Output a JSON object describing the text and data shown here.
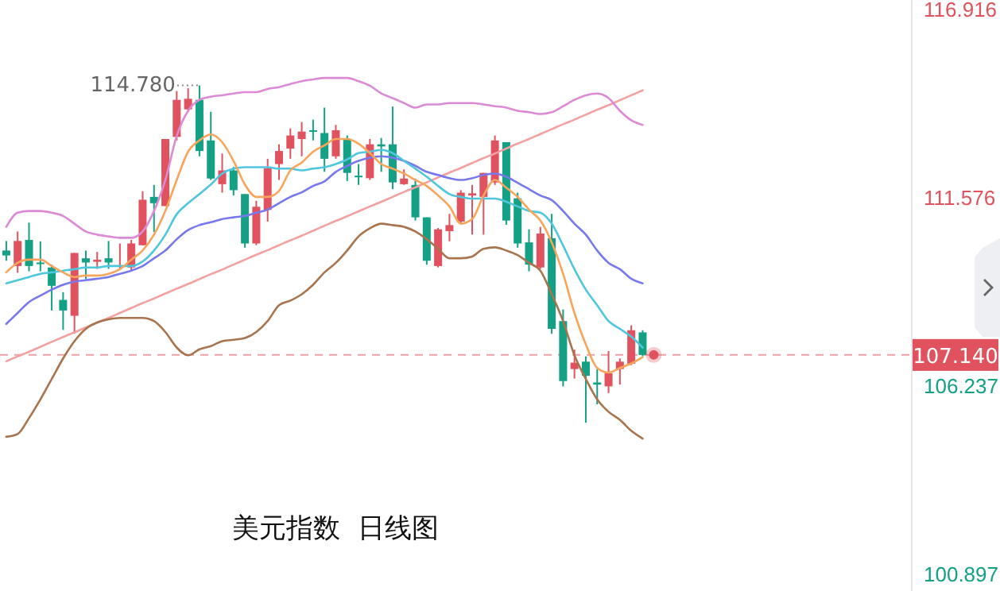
{
  "chart_data": {
    "type": "candlestick",
    "title": "美元指数  日线图",
    "tick_labels": "y",
    "line_style": "solid",
    "categories": [
      null,
      null,
      null,
      null,
      null,
      null,
      null,
      null,
      null,
      null,
      null,
      null,
      null,
      null,
      null,
      null,
      null,
      null,
      null,
      null,
      null,
      null,
      null,
      null,
      null,
      null,
      null,
      null,
      null,
      null,
      null,
      null,
      null,
      null,
      null,
      null,
      null,
      null,
      null,
      null,
      null,
      null,
      null,
      null,
      null,
      null,
      null,
      null,
      null,
      null,
      null,
      null,
      null,
      null,
      null,
      null,
      null
    ],
    "ohlc": [
      [
        110.1,
        110.37,
        109.81,
        109.96
      ],
      [
        109.66,
        110.64,
        109.47,
        110.37
      ],
      [
        110.4,
        110.89,
        109.51,
        109.66
      ],
      [
        109.76,
        110.36,
        109.51,
        109.74
      ],
      [
        109.62,
        109.7,
        108.4,
        109.1
      ],
      [
        108.7,
        108.92,
        107.85,
        108.4
      ],
      [
        108.25,
        110.03,
        107.74,
        110.03
      ],
      [
        109.88,
        110.1,
        109.29,
        109.76
      ],
      [
        109.78,
        110.06,
        109.58,
        109.84
      ],
      [
        109.88,
        110.37,
        109.58,
        109.76
      ],
      [
        109.64,
        110.3,
        109.58,
        109.68
      ],
      [
        109.62,
        110.4,
        109.51,
        110.3
      ],
      [
        110.25,
        111.78,
        110.25,
        111.54
      ],
      [
        111.62,
        111.96,
        110.62,
        111.44
      ],
      [
        111.36,
        113.26,
        111.36,
        113.26
      ],
      [
        113.32,
        114.62,
        113.22,
        114.37
      ],
      [
        114.1,
        114.7,
        114.03,
        114.4
      ],
      [
        114.37,
        114.78,
        112.77,
        112.92
      ],
      [
        113.22,
        114.03,
        112.1,
        112.14
      ],
      [
        111.98,
        112.85,
        111.74,
        112.37
      ],
      [
        112.37,
        112.47,
        111.66,
        111.81
      ],
      [
        111.7,
        111.7,
        110.18,
        110.3
      ],
      [
        110.3,
        111.51,
        110.25,
        111.34
      ],
      [
        111.25,
        112.7,
        110.92,
        112.43
      ],
      [
        112.55,
        113.11,
        112.1,
        112.92
      ],
      [
        112.99,
        113.56,
        112.7,
        113.36
      ],
      [
        113.26,
        113.74,
        112.77,
        113.47
      ],
      [
        113.51,
        113.81,
        113.22,
        113.47
      ],
      [
        113.43,
        114.15,
        112.33,
        112.7
      ],
      [
        112.77,
        113.66,
        112.7,
        113.51
      ],
      [
        113.26,
        113.36,
        112.07,
        112.3
      ],
      [
        112.22,
        112.55,
        111.96,
        112.18
      ],
      [
        112.15,
        113.26,
        112.1,
        113.11
      ],
      [
        113.11,
        113.29,
        112.33,
        113.05
      ],
      [
        113.11,
        114.18,
        111.84,
        112.03
      ],
      [
        111.98,
        112.4,
        111.96,
        112.14
      ],
      [
        111.96,
        112.14,
        110.95,
        111.04
      ],
      [
        111.04,
        111.04,
        109.7,
        109.81
      ],
      [
        109.66,
        110.74,
        109.62,
        110.7
      ],
      [
        110.65,
        111.14,
        110.36,
        110.82
      ],
      [
        110.92,
        111.81,
        110.85,
        111.74
      ],
      [
        111.66,
        111.96,
        110.55,
        111.72
      ],
      [
        111.62,
        112.3,
        110.55,
        112.3
      ],
      [
        112.03,
        113.36,
        111.96,
        113.22
      ],
      [
        113.17,
        113.17,
        110.83,
        110.95
      ],
      [
        111.58,
        111.74,
        110.18,
        110.3
      ],
      [
        110.33,
        110.7,
        109.51,
        109.7
      ],
      [
        109.62,
        110.77,
        109.58,
        110.58
      ],
      [
        110.45,
        111.14,
        107.74,
        107.88
      ],
      [
        108.1,
        108.43,
        106.25,
        106.4
      ],
      [
        106.74,
        107.29,
        106.47,
        106.92
      ],
      [
        106.95,
        107.1,
        105.22,
        106.55
      ],
      [
        106.36,
        106.74,
        105.74,
        106.3
      ],
      [
        106.25,
        107.25,
        106.06,
        106.62
      ],
      [
        106.74,
        107.04,
        106.3,
        106.95
      ],
      [
        106.89,
        107.98,
        106.85,
        107.84
      ],
      [
        107.78,
        107.84,
        107.1,
        107.14
      ]
    ],
    "colors": [
      "#14a085",
      "#e0525e",
      "#14a085",
      "#14a085",
      "#14a085",
      "#14a085",
      "#e0525e",
      "#14a085",
      "#e0525e",
      "#14a085",
      "#e0525e",
      "#e0525e",
      "#e0525e",
      "#14a085",
      "#e0525e",
      "#e0525e",
      "#e0525e",
      "#14a085",
      "#14a085",
      "#e0525e",
      "#14a085",
      "#14a085",
      "#e0525e",
      "#e0525e",
      "#e0525e",
      "#e0525e",
      "#e0525e",
      "#14a085",
      "#14a085",
      "#e0525e",
      "#14a085",
      "#14a085",
      "#e0525e",
      "#14a085",
      "#14a085",
      "#e0525e",
      "#14a085",
      "#14a085",
      "#e0525e",
      "#e0525e",
      "#e0525e",
      "#e0525e",
      "#e0525e",
      "#e0525e",
      "#14a085",
      "#14a085",
      "#14a085",
      "#e0525e",
      "#14a085",
      "#14a085",
      "#e0525e",
      "#14a085",
      "#14a085",
      "#e0525e",
      "#e0525e",
      "#e0525e",
      "#14a085"
    ],
    "series": [
      {
        "type": "line",
        "color": "#f4a0a0",
        "values": [
          106.96,
          107.1,
          107.23,
          107.37,
          107.51,
          107.65,
          107.78,
          107.92,
          108.06,
          108.19,
          108.33,
          108.47,
          108.61,
          108.74,
          108.88,
          109.02,
          109.15,
          109.29,
          109.43,
          109.56,
          109.7,
          109.84,
          109.98,
          110.11,
          110.25,
          110.39,
          110.52,
          110.66,
          110.8,
          110.94,
          111.07,
          111.21,
          111.35,
          111.48,
          111.62,
          111.76,
          111.89,
          112.03,
          112.17,
          112.31,
          112.44,
          112.58,
          112.72,
          112.85,
          112.99,
          113.13,
          113.26,
          113.4,
          113.54,
          113.68,
          113.81,
          113.95,
          114.09,
          114.22,
          114.36,
          114.5,
          114.64
        ]
      },
      {
        "type": "line",
        "color": "#dc8ad6",
        "values": [
          110.77,
          111.17,
          111.22,
          111.22,
          111.17,
          111.08,
          110.86,
          110.64,
          110.55,
          110.5,
          110.46,
          110.46,
          110.64,
          111.22,
          112.1,
          113.35,
          114.06,
          114.37,
          114.46,
          114.5,
          114.55,
          114.59,
          114.59,
          114.68,
          114.73,
          114.82,
          114.9,
          114.95,
          114.99,
          114.99,
          114.99,
          114.9,
          114.77,
          114.55,
          114.42,
          114.28,
          114.15,
          114.24,
          114.24,
          114.28,
          114.28,
          114.28,
          114.24,
          114.19,
          114.15,
          114.06,
          114.02,
          113.97,
          114.02,
          114.19,
          114.37,
          114.5,
          114.55,
          114.42,
          114.06,
          113.79,
          113.66
        ]
      },
      {
        "type": "line",
        "color": "#7878ee",
        "values": [
          108.02,
          108.33,
          108.64,
          108.82,
          108.99,
          109.13,
          109.22,
          109.26,
          109.3,
          109.35,
          109.44,
          109.53,
          109.66,
          109.88,
          110.1,
          110.42,
          110.68,
          110.82,
          110.9,
          110.99,
          111.04,
          111.08,
          111.17,
          111.26,
          111.44,
          111.62,
          111.75,
          111.93,
          112.06,
          112.33,
          112.5,
          112.64,
          112.73,
          112.77,
          112.73,
          112.64,
          112.5,
          112.33,
          112.24,
          112.15,
          112.1,
          112.15,
          112.24,
          112.28,
          112.19,
          112.02,
          111.84,
          111.66,
          111.53,
          111.22,
          110.86,
          110.55,
          110.1,
          109.75,
          109.57,
          109.3,
          109.17
        ]
      },
      {
        "type": "line",
        "color": "#a8744e",
        "values": [
          104.82,
          104.9,
          105.35,
          105.88,
          106.46,
          107.04,
          107.53,
          107.88,
          108.06,
          108.15,
          108.19,
          108.19,
          108.19,
          108.1,
          107.79,
          107.35,
          107.13,
          107.3,
          107.39,
          107.53,
          107.57,
          107.62,
          107.79,
          108.1,
          108.55,
          108.68,
          108.86,
          109.13,
          109.48,
          109.75,
          110.1,
          110.5,
          110.73,
          110.86,
          110.82,
          110.77,
          110.64,
          110.42,
          110.15,
          109.88,
          109.88,
          109.93,
          110.15,
          110.19,
          110.1,
          109.97,
          109.75,
          109.53,
          108.86,
          108.1,
          107.13,
          106.46,
          105.88,
          105.53,
          105.3,
          104.99,
          104.77
        ]
      },
      {
        "type": "line",
        "color": "#4ec6de",
        "values": [
          109.17,
          109.26,
          109.35,
          109.44,
          109.48,
          109.53,
          109.57,
          109.62,
          109.62,
          109.66,
          109.66,
          109.66,
          109.79,
          110.1,
          110.55,
          111.13,
          111.44,
          111.7,
          111.97,
          112.28,
          112.42,
          112.46,
          112.46,
          112.46,
          112.42,
          112.42,
          112.37,
          112.42,
          112.46,
          112.55,
          112.68,
          112.86,
          112.9,
          112.95,
          112.86,
          112.64,
          112.42,
          112.19,
          111.93,
          111.7,
          111.62,
          111.57,
          111.57,
          111.57,
          111.48,
          111.35,
          111.22,
          111.17,
          110.86,
          110.24,
          109.57,
          108.99,
          108.55,
          108.1,
          107.88,
          107.66,
          107.35
        ]
      },
      {
        "type": "line",
        "color": "#f8a55c",
        "values": [
          109.48,
          109.75,
          109.84,
          109.84,
          109.66,
          109.48,
          109.35,
          109.39,
          109.39,
          109.44,
          109.57,
          109.84,
          110.1,
          110.55,
          111.22,
          112.1,
          112.9,
          113.22,
          113.39,
          113.17,
          112.64,
          111.97,
          111.62,
          111.62,
          111.79,
          112.37,
          112.59,
          112.9,
          113.08,
          113.26,
          113.26,
          113.13,
          112.86,
          112.55,
          112.42,
          112.28,
          112.1,
          111.93,
          111.66,
          111.35,
          110.86,
          110.99,
          111.66,
          112.1,
          111.88,
          111.62,
          111.26,
          110.95,
          110.33,
          109.44,
          108.33,
          107.44,
          106.77,
          106.64,
          106.77,
          106.9,
          107.08
        ]
      }
    ],
    "ylim": [
      100.45,
      117.2
    ],
    "yticks": [
      116.916,
      111.576,
      106.237,
      100.897
    ],
    "ref_lines": [
      {
        "axis": "y",
        "value": 107.14,
        "label": "107.140",
        "color": "#e0525e",
        "line_style": "dashed"
      }
    ],
    "annotations": [
      "114.780"
    ]
  }
}
